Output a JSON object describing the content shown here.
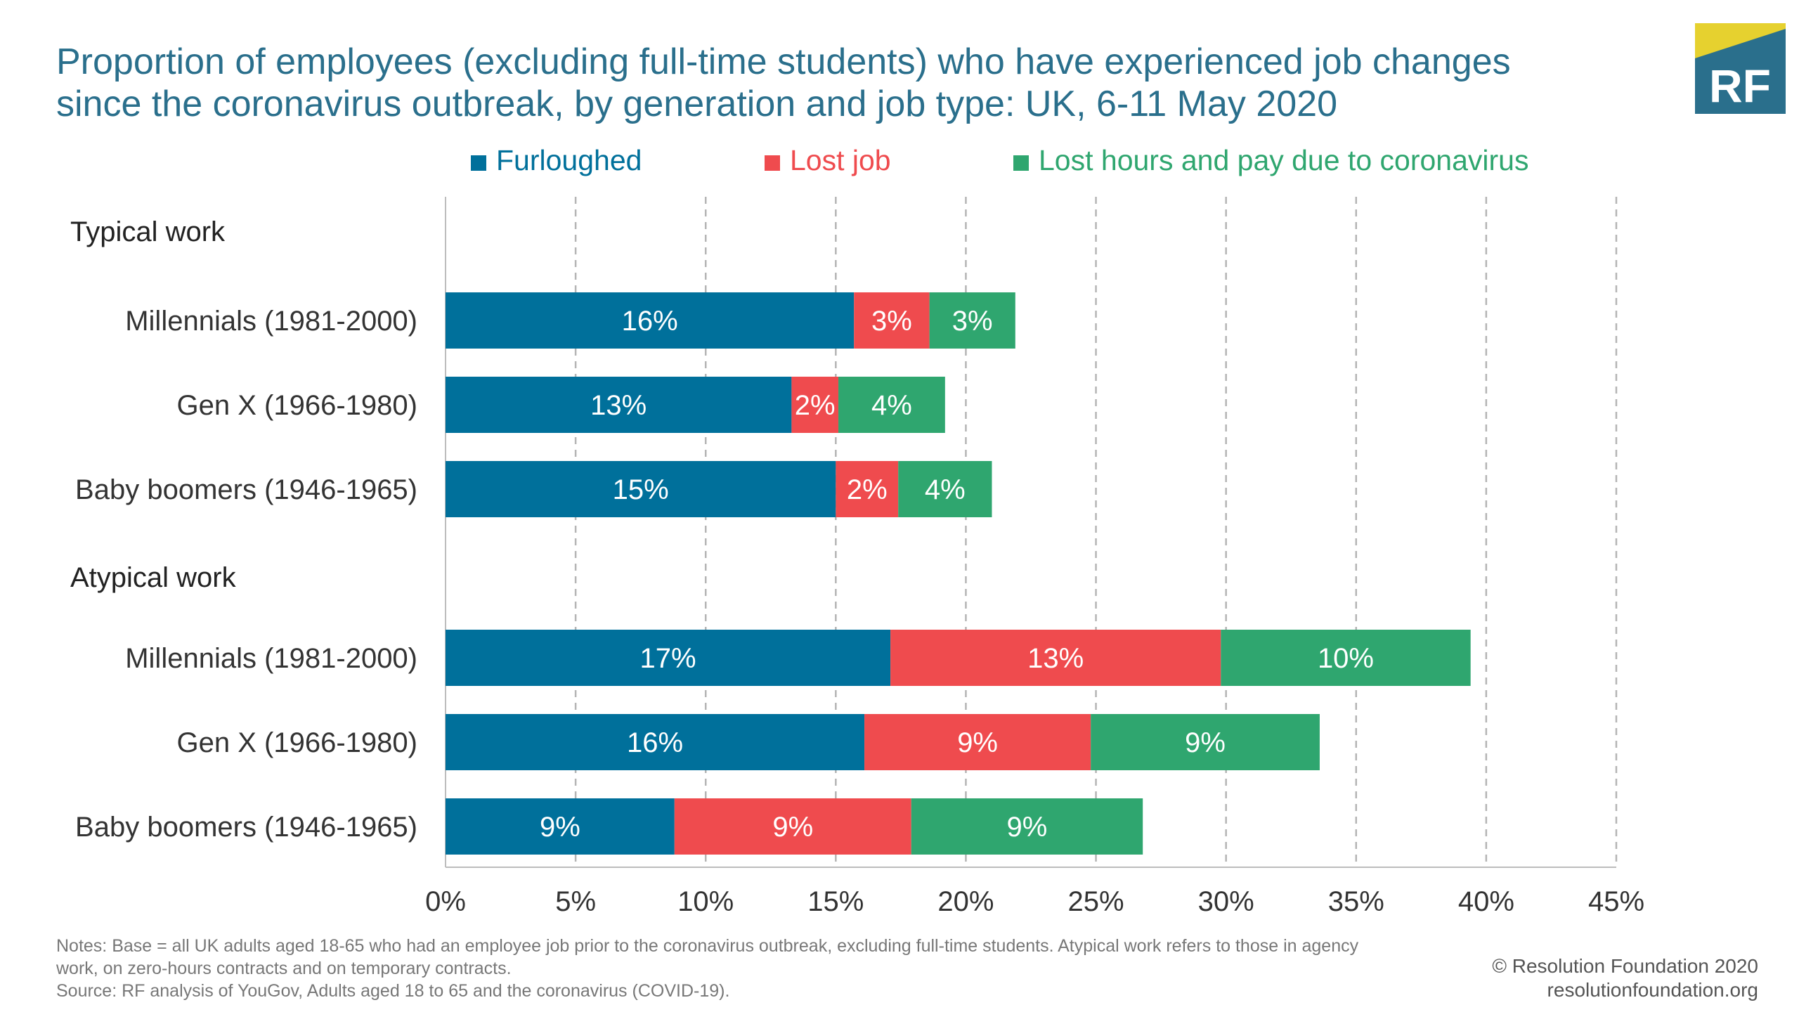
{
  "title": "Proportion of employees (excluding full-time students) who have experienced job changes since the coronavirus outbreak, by generation and job type: UK, 6-11 May 2020",
  "logo": {
    "text": "RF",
    "bg_color": "#2a6f8c",
    "accent_color": "#e6d12f"
  },
  "legend": [
    {
      "label": "Furloughed",
      "color": "#00709b"
    },
    {
      "label": "Lost job",
      "color": "#ef4b4e"
    },
    {
      "label": "Lost hours and pay due to coronavirus",
      "color": "#2fa66f"
    }
  ],
  "chart_data": {
    "type": "bar",
    "orientation": "horizontal",
    "stacked": true,
    "groups": [
      {
        "name": "Typical work",
        "categories": [
          "Millennials (1981-2000)",
          "Gen X (1966-1980)",
          "Baby boomers (1946-1965)"
        ],
        "series": [
          {
            "name": "Furloughed",
            "values": [
              15.7,
              13.3,
              15.0
            ],
            "labels": [
              "16%",
              "13%",
              "15%"
            ]
          },
          {
            "name": "Lost job",
            "values": [
              2.9,
              1.8,
              2.4
            ],
            "labels": [
              "3%",
              "2%",
              "2%"
            ]
          },
          {
            "name": "Lost hours and pay due to coronavirus",
            "values": [
              3.3,
              4.1,
              3.6
            ],
            "labels": [
              "3%",
              "4%",
              "4%"
            ]
          }
        ]
      },
      {
        "name": "Atypical work",
        "categories": [
          "Millennials (1981-2000)",
          "Gen X (1966-1980)",
          "Baby boomers (1946-1965)"
        ],
        "series": [
          {
            "name": "Furloughed",
            "values": [
              17.1,
              16.1,
              8.8
            ],
            "labels": [
              "17%",
              "16%",
              "9%"
            ]
          },
          {
            "name": "Lost job",
            "values": [
              12.7,
              8.7,
              9.1
            ],
            "labels": [
              "13%",
              "9%",
              "9%"
            ]
          },
          {
            "name": "Lost hours and pay due to coronavirus",
            "values": [
              9.6,
              8.8,
              8.9
            ],
            "labels": [
              "10%",
              "9%",
              "9%"
            ]
          }
        ]
      }
    ],
    "xlim": [
      0,
      45
    ],
    "xticks": [
      0,
      5,
      10,
      15,
      20,
      25,
      30,
      35,
      40,
      45
    ],
    "xtick_labels": [
      "0%",
      "5%",
      "10%",
      "15%",
      "20%",
      "25%",
      "30%",
      "35%",
      "40%",
      "45%"
    ],
    "grid": "vertical dashed",
    "legend_position": "top"
  },
  "notes": [
    "Notes: Base = all UK adults aged 18-65 who had an employee job prior to the coronavirus outbreak, excluding full-time students. Atypical work refers to those in agency",
    "work, on zero-hours contracts and on temporary contracts.",
    "Source: RF analysis of YouGov, Adults aged 18 to 65 and the coronavirus (COVID-19)."
  ],
  "credit": [
    "© Resolution Foundation 2020",
    "resolutionfoundation.org"
  ]
}
